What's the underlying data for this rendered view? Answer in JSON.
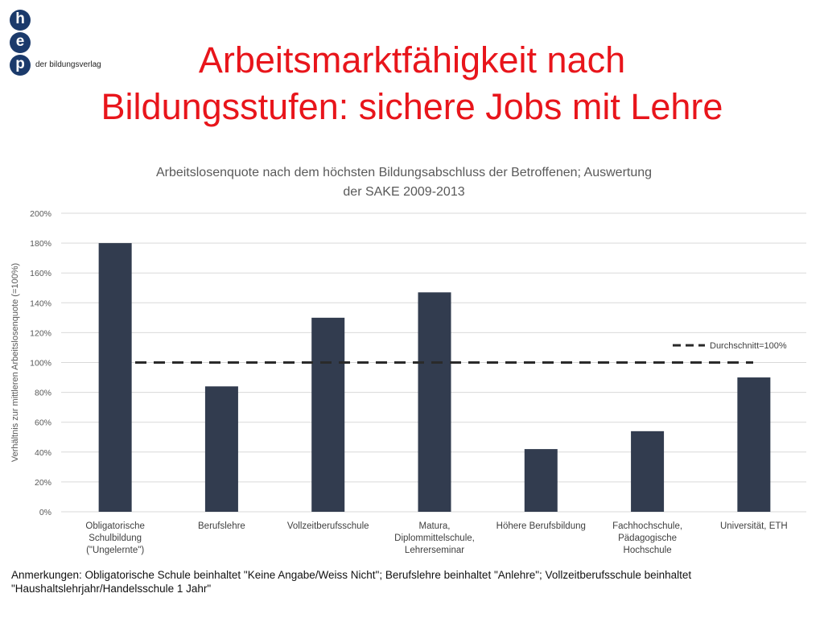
{
  "header": {
    "logo_letters": [
      "h",
      "e",
      "p"
    ],
    "logo_tagline": "der bildungsverlag",
    "title_line1": "Arbeitsmarktfähigkeit nach",
    "title_line2": "Bildungsstufen: sichere Jobs mit Lehre"
  },
  "colors": {
    "title": "#e8151b",
    "bar": "#323c4f",
    "logo": "#1b3a6b",
    "average_line": "#2a2a2a",
    "grid": "#d9d9d9"
  },
  "chart_data": {
    "type": "bar",
    "title_line1": "Arbeitslosenquote nach dem höchsten Bildungsabschluss der Betroffenen; Auswertung",
    "title_line2": "der SAKE 2009-2013",
    "ylabel": "Verhältnis zur mittleren Arbeitslosenquote (=100%)",
    "xlabel": "",
    "ylim": [
      0,
      200
    ],
    "ytick_step": 20,
    "ytick_suffix": "%",
    "grid": true,
    "categories": [
      [
        "Obligatorische",
        "Schulbildung",
        "(\"Ungelernte\")"
      ],
      [
        "Berufslehre"
      ],
      [
        "Vollzeitberufsschule"
      ],
      [
        "Matura,",
        "Diplommittelschule,",
        "Lehrerseminar"
      ],
      [
        "Höhere Berufsbildung"
      ],
      [
        "Fachhochschule,",
        "Pädagogische",
        "Hochschule"
      ],
      [
        "Universität, ETH"
      ]
    ],
    "values": [
      180,
      84,
      130,
      147,
      42,
      54,
      90
    ],
    "reference_line": {
      "value": 100,
      "label": "Durchschnitt=100%",
      "style": "dashed"
    },
    "legend_position": "top-right"
  },
  "footnote": {
    "line1": "Anmerkungen: Obligatorische Schule beinhaltet \"Keine Angabe/Weiss Nicht\"; Berufslehre beinhaltet \"Anlehre\"; Vollzeitberufsschule beinhaltet",
    "line2": "\"Haushaltslehrjahr/Handelsschule 1 Jahr\""
  }
}
